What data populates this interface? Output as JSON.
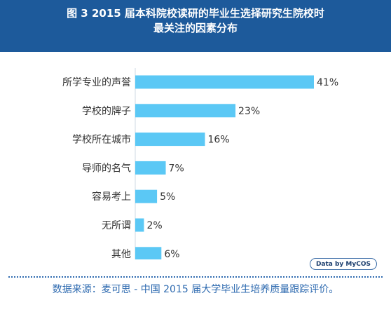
{
  "header": {
    "title_line1": "图 3  2015 届本科院校读研的毕业生选择研究生院校时",
    "title_line2": "最关注的因素分布"
  },
  "chart_data": {
    "type": "bar",
    "orientation": "horizontal",
    "categories": [
      "所学专业的声誉",
      "学校的牌子",
      "学校所在城市",
      "导师的名气",
      "容易考上",
      "无所谓",
      "其他"
    ],
    "values": [
      41,
      23,
      16,
      7,
      5,
      2,
      6
    ],
    "value_labels": [
      "41%",
      "23%",
      "16%",
      "7%",
      "5%",
      "2%",
      "6%"
    ],
    "unit": "%",
    "bar_color": "#5bc8f5",
    "grid": false,
    "legend": "none"
  },
  "badge": {
    "label": "Data by MyCOS"
  },
  "footer": {
    "source": "数据来源：麦可思 - 中国 2015 届大学毕业生培养质量跟踪评价。"
  }
}
